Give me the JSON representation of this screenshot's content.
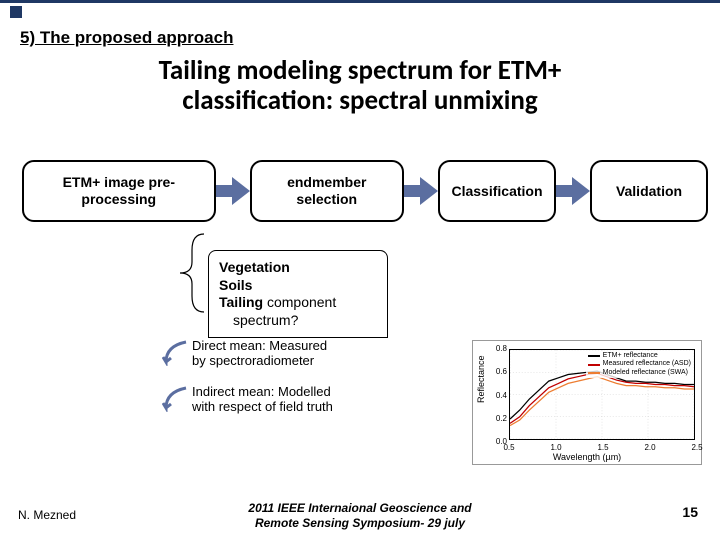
{
  "header": {
    "section": "5) The proposed approach",
    "title_line1": "Tailing modeling spectrum for ETM+",
    "title_line2": "classification: spectral unmixing"
  },
  "flow": {
    "nodes": [
      {
        "label": "ETM+ image pre-processing"
      },
      {
        "label": "endmember selection"
      },
      {
        "label": "Classification"
      },
      {
        "label": "Validation"
      }
    ],
    "arrow_color": "#5b6ea0"
  },
  "endmembers": {
    "items": [
      "Vegetation",
      "Soils"
    ],
    "tailing_prefix": "Tailing",
    "tailing_rest": " component",
    "tailing_line2": "spectrum?"
  },
  "means": {
    "direct": {
      "l1": "Direct mean: Measured",
      "l2": " by spectroradiometer"
    },
    "indirect": {
      "l1": "Indirect mean: Modelled",
      "l2": "with respect of field truth"
    },
    "curve_color": "#5b6ea0"
  },
  "chart": {
    "ylabel": "Reflectance",
    "xlabel": "Wavelength (µm)",
    "series": [
      {
        "name": "ETM+ reflectance",
        "color": "#000000",
        "values": [
          0.18,
          0.26,
          0.36,
          0.44,
          0.52,
          0.55,
          0.58,
          0.59,
          0.6,
          0.61,
          0.58,
          0.55,
          0.52,
          0.52,
          0.51,
          0.51,
          0.5,
          0.5,
          0.49,
          0.49
        ]
      },
      {
        "name": "Measured reflectance (ASD)",
        "color": "#c00000",
        "values": [
          0.14,
          0.2,
          0.3,
          0.38,
          0.46,
          0.5,
          0.54,
          0.56,
          0.58,
          0.59,
          0.56,
          0.53,
          0.51,
          0.5,
          0.5,
          0.49,
          0.49,
          0.48,
          0.48,
          0.47
        ]
      },
      {
        "name": "Modeled reflectance (SWA)",
        "color": "#ed7d31",
        "values": [
          0.12,
          0.17,
          0.26,
          0.34,
          0.42,
          0.46,
          0.5,
          0.52,
          0.54,
          0.56,
          0.53,
          0.5,
          0.48,
          0.48,
          0.47,
          0.47,
          0.46,
          0.46,
          0.45,
          0.45
        ]
      }
    ],
    "ylim": [
      0.0,
      0.8
    ],
    "yticks": [
      0.0,
      0.2,
      0.4,
      0.6,
      0.8
    ],
    "xlim": [
      0.5,
      2.5
    ],
    "xticks": [
      0.5,
      1.0,
      1.5,
      2.0,
      2.5
    ],
    "grid_color": "#cccccc"
  },
  "footer": {
    "author": "N. Mezned",
    "conference_l1": "2011 IEEE Internaional Geoscience and",
    "conference_l2": "Remote Sensing Symposium- 29 july",
    "page": "15"
  }
}
